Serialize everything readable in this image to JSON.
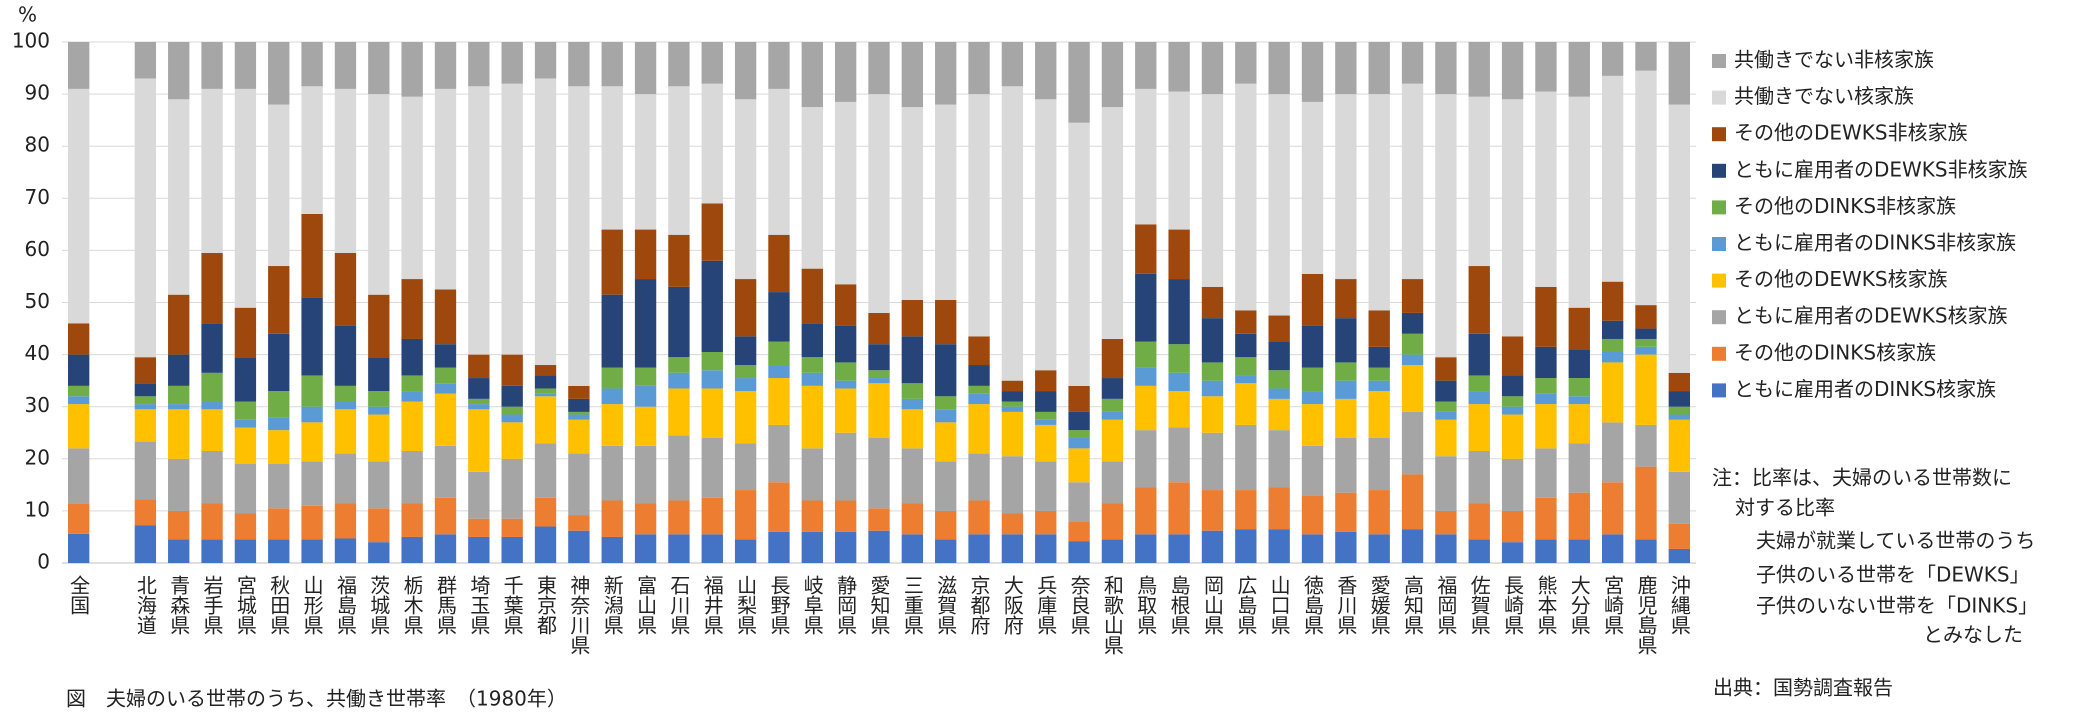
{
  "chart_data": {
    "type": "stacked_bar",
    "y_unit": "%",
    "caption": "図　夫婦のいる世帯のうち、共働き世帯率　（1980年）",
    "source": "出典：国勢調査報告",
    "notes": [
      "注：比率は、夫婦のいる世帯数に",
      "対する比率",
      "夫婦が就業している世帯のうち",
      "子供のいる世帯を「DEWKS」",
      "子供のいない世帯を「DINKS」",
      "とみなした"
    ],
    "categories": [
      "全国",
      "北海道",
      "青森県",
      "岩手県",
      "宮城県",
      "秋田県",
      "山形県",
      "福島県",
      "茨城県",
      "栃木県",
      "群馬県",
      "埼玉県",
      "千葉県",
      "東京都",
      "神奈川県",
      "新潟県",
      "富山県",
      "石川県",
      "福井県",
      "山梨県",
      "長野県",
      "岐阜県",
      "静岡県",
      "愛知県",
      "三重県",
      "滋賀県",
      "京都府",
      "大阪府",
      "兵庫県",
      "奈良県",
      "和歌山県",
      "鳥取県",
      "島根県",
      "岡山県",
      "広島県",
      "山口県",
      "徳島県",
      "香川県",
      "愛媛県",
      "高知県",
      "福岡県",
      "佐賀県",
      "長崎県",
      "熊本県",
      "大分県",
      "宮崎県",
      "鹿児島県",
      "沖縄県"
    ],
    "ylim": [
      0,
      100
    ],
    "yticks": [
      0,
      10,
      20,
      30,
      40,
      50,
      60,
      70,
      80,
      90,
      100
    ],
    "grid": true,
    "series": [
      {
        "name": "ともに雇用者のDINKS核家族",
        "color": "#4472c4",
        "values": [
          5.6,
          7.2,
          4.5,
          4.5,
          4.5,
          4.5,
          4.5,
          4.7,
          4,
          5,
          5.5,
          5,
          5,
          7,
          6.2,
          5,
          5.5,
          5.5,
          5.5,
          4.5,
          6,
          6,
          6,
          6.2,
          5.5,
          4.5,
          5.5,
          5.5,
          5.5,
          4.2,
          4.5,
          5.5,
          5.5,
          6.2,
          6.5,
          6.5,
          5.5,
          6,
          5.5,
          6.5,
          5.5,
          4.5,
          4,
          4.5,
          4.5,
          5.5,
          4.5,
          2.7
        ]
      },
      {
        "name": "その他のDINKS核家族",
        "color": "#ed7d31",
        "values": [
          5.8,
          5,
          5.5,
          7,
          5,
          6,
          6.5,
          6.8,
          6.5,
          6.5,
          7,
          3.5,
          3.5,
          5.5,
          3,
          7,
          6,
          6.5,
          7,
          9.5,
          9.5,
          6,
          6,
          4.3,
          6,
          5.5,
          6.5,
          4,
          4.5,
          3.8,
          7,
          9,
          10,
          7.8,
          7.5,
          8,
          7.5,
          7.5,
          8.5,
          10.5,
          4.5,
          7,
          6,
          8,
          9,
          10,
          14,
          4.8
        ]
      },
      {
        "name": "ともに雇用者のDEWKS核家族",
        "color": "#a5a5a5",
        "values": [
          10.6,
          11.1,
          10,
          10,
          9.5,
          8.5,
          8.5,
          9.5,
          9,
          10,
          10,
          9,
          11.5,
          10.5,
          11.8,
          10.5,
          11,
          12.5,
          11.5,
          9,
          11,
          10,
          13,
          13.5,
          10.5,
          9.5,
          9,
          11,
          9.5,
          7.5,
          8,
          11,
          10.5,
          11,
          12.5,
          11,
          9.5,
          10.5,
          10,
          12,
          10.5,
          10,
          10,
          9.5,
          9.5,
          11.5,
          8,
          10
        ]
      },
      {
        "name": "その他のDEWKS核家族",
        "color": "#ffc000",
        "values": [
          8.5,
          6.2,
          9.5,
          8,
          7,
          6.5,
          7.5,
          8.5,
          9,
          9.5,
          10,
          12,
          7,
          9,
          6.5,
          8,
          7.5,
          9,
          9.5,
          10,
          9,
          12,
          8.5,
          10.5,
          7.5,
          7.5,
          9.5,
          8.5,
          7,
          6.5,
          8,
          8.5,
          7,
          7,
          8,
          6,
          8,
          7.5,
          9,
          9,
          7,
          9,
          8.5,
          8.5,
          7.5,
          11.5,
          13.5,
          10
        ]
      },
      {
        "name": "ともに雇用者のDINKS非核家族",
        "color": "#5b9bd5",
        "values": [
          1.5,
          1,
          1,
          1.5,
          1.5,
          2.5,
          3,
          1.5,
          1.5,
          2,
          2,
          1,
          1.5,
          0.5,
          1,
          3,
          4,
          3,
          3.5,
          2.5,
          2.5,
          2.5,
          1.5,
          1,
          2,
          2.5,
          2,
          1,
          1,
          2,
          1.5,
          3.5,
          3.5,
          3,
          1.5,
          2,
          2.5,
          3.5,
          2,
          2,
          1.5,
          2.5,
          1.5,
          2,
          1.5,
          2,
          1.5,
          1
        ]
      },
      {
        "name": "その他のDINKS非核家族",
        "color": "#70ad47",
        "values": [
          2,
          1.5,
          3.5,
          5.5,
          3.5,
          5,
          6,
          3,
          3,
          3,
          3,
          1,
          1.5,
          1,
          0.5,
          4,
          3.5,
          3,
          3.5,
          2.5,
          4.5,
          3,
          3.5,
          1.5,
          3,
          2.5,
          1.5,
          1,
          1.5,
          1.5,
          2.5,
          5,
          5.5,
          3.5,
          3.5,
          3.5,
          4.5,
          3.5,
          2.5,
          4,
          2,
          3,
          2,
          3,
          3.5,
          2.5,
          1.5,
          1.5
        ]
      },
      {
        "name": "ともに雇用者のDEWKS非核家族",
        "color": "#264478",
        "values": [
          6,
          2.5,
          6,
          9.5,
          8.5,
          11,
          15,
          11.5,
          6.5,
          7,
          4.5,
          4,
          4,
          2.5,
          2.5,
          14,
          17,
          13.5,
          17.5,
          5.5,
          9.5,
          6.5,
          7,
          5,
          9,
          10,
          4,
          2,
          4,
          3.5,
          4,
          13,
          12.5,
          8.5,
          4.5,
          5.5,
          8,
          8.5,
          4,
          4,
          4,
          8,
          4,
          6,
          5.5,
          3.5,
          2,
          3
        ]
      },
      {
        "name": "その他のDEWKS非核家族",
        "color": "#9e480e",
        "values": [
          6,
          5,
          11.5,
          13.5,
          9.5,
          13,
          16,
          14,
          12,
          11.5,
          10.5,
          4.5,
          6,
          2,
          2.5,
          12.5,
          9.5,
          10,
          11,
          11,
          11,
          10.5,
          8,
          6,
          7,
          8.5,
          5.5,
          2,
          4,
          5,
          7.5,
          9.5,
          9.5,
          6,
          4.5,
          5,
          10,
          7.5,
          7,
          6.5,
          4.5,
          13,
          7.5,
          11.5,
          8,
          7.5,
          4.5,
          3.5
        ]
      },
      {
        "name": "共働きでない核家族",
        "color": "#d9d9d9",
        "values": [
          45,
          53.5,
          37.5,
          31.5,
          42,
          31,
          24.5,
          31.5,
          38.5,
          35,
          38.5,
          51.5,
          52,
          55,
          57.5,
          27.5,
          26,
          28.5,
          23,
          34.5,
          28,
          31,
          35,
          42,
          37,
          37.5,
          46.5,
          56.5,
          52,
          50.5,
          44.5,
          26,
          26.5,
          37,
          43.5,
          42.5,
          33,
          35.5,
          41.5,
          37.5,
          50.5,
          32.5,
          45.5,
          37.5,
          40.5,
          39.5,
          45,
          51.5
        ]
      },
      {
        "name": "共働きでない非核家族",
        "color": "#a6a6a6",
        "values": [
          9,
          7,
          11,
          9,
          9,
          12,
          8.5,
          9,
          10,
          10.5,
          9,
          8.5,
          8,
          7,
          8.5,
          8.5,
          10,
          8.5,
          8,
          11,
          9,
          12.5,
          11.5,
          10,
          12.5,
          12,
          10,
          8.5,
          11,
          15.5,
          12.5,
          9,
          9.5,
          10,
          8,
          10,
          11.5,
          10,
          10,
          8,
          10,
          10.5,
          11,
          9.5,
          10.5,
          6.5,
          5.5,
          12
        ]
      }
    ]
  }
}
